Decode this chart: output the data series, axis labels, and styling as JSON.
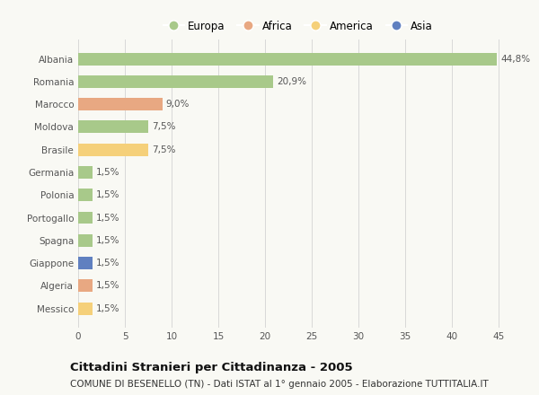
{
  "categories": [
    "Albania",
    "Romania",
    "Marocco",
    "Moldova",
    "Brasile",
    "Germania",
    "Polonia",
    "Portogallo",
    "Spagna",
    "Giappone",
    "Algeria",
    "Messico"
  ],
  "values": [
    44.8,
    20.9,
    9.0,
    7.5,
    7.5,
    1.5,
    1.5,
    1.5,
    1.5,
    1.5,
    1.5,
    1.5
  ],
  "labels": [
    "44,8%",
    "20,9%",
    "9,0%",
    "7,5%",
    "7,5%",
    "1,5%",
    "1,5%",
    "1,5%",
    "1,5%",
    "1,5%",
    "1,5%",
    "1,5%"
  ],
  "continents": [
    "Europa",
    "Europa",
    "Africa",
    "Europa",
    "America",
    "Europa",
    "Europa",
    "Europa",
    "Europa",
    "Asia",
    "Africa",
    "America"
  ],
  "colors": {
    "Europa": "#a8c98a",
    "Africa": "#e8a882",
    "America": "#f5d07a",
    "Asia": "#6080c0"
  },
  "xlim": [
    0,
    47
  ],
  "xticks": [
    0,
    5,
    10,
    15,
    20,
    25,
    30,
    35,
    40,
    45
  ],
  "title": "Cittadini Stranieri per Cittadinanza - 2005",
  "subtitle": "COMUNE DI BESENELLO (TN) - Dati ISTAT al 1° gennaio 2005 - Elaborazione TUTTITALIA.IT",
  "background_color": "#f9f9f4",
  "grid_color": "#d8d8d8",
  "title_fontsize": 9.5,
  "subtitle_fontsize": 7.5,
  "label_fontsize": 7.5,
  "tick_fontsize": 7.5,
  "legend_items": [
    "Europa",
    "Africa",
    "America",
    "Asia"
  ],
  "bar_height": 0.55
}
